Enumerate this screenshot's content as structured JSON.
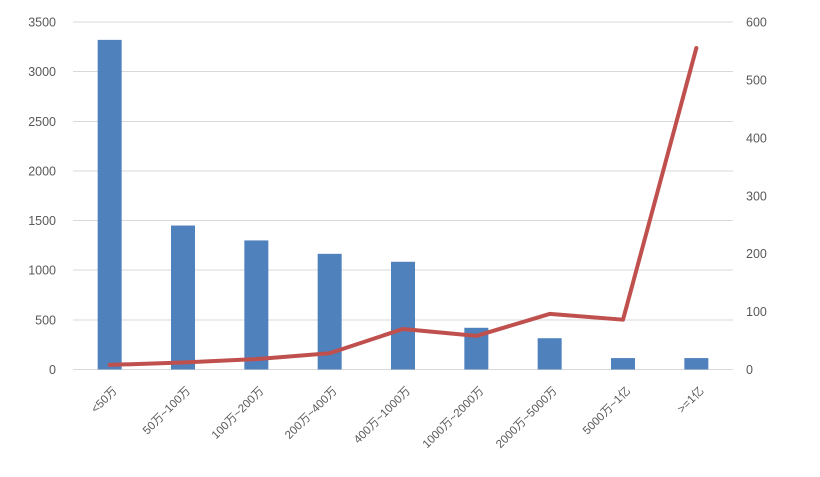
{
  "chart_data": {
    "type": "combo",
    "title": "",
    "xlabel": "",
    "ylabel": "",
    "legend": "none",
    "grid": "horizontal-only",
    "categories": [
      "<50万",
      "50万~100万",
      "100万~200万",
      "200万~400万",
      "400万~1000万",
      "1000万~2000万",
      "2000万~5000万",
      "5000万~1亿",
      ">=1亿"
    ],
    "series": [
      {
        "name": "bar-series",
        "type": "bar",
        "axis": "left",
        "color": "#4F81BD",
        "values": [
          3320,
          1450,
          1300,
          1165,
          1085,
          420,
          315,
          115,
          115
        ]
      },
      {
        "name": "line-series",
        "type": "line",
        "axis": "right",
        "color": "#C0504D",
        "values": [
          8,
          12,
          18,
          28,
          70,
          58,
          96,
          86,
          555
        ]
      }
    ],
    "axes": {
      "left": {
        "min": 0,
        "max": 3500,
        "step": 500,
        "ticks": [
          "0",
          "500",
          "1000",
          "1500",
          "2000",
          "2500",
          "3000",
          "3500"
        ]
      },
      "right": {
        "min": 0,
        "max": 600,
        "step": 100,
        "ticks": [
          "0",
          "100",
          "200",
          "300",
          "400",
          "500",
          "600"
        ]
      }
    },
    "colors": {
      "background": "#FFFFFF",
      "gridline": "#D9D9D9",
      "tick_label": "#595959",
      "bar": "#4F81BD",
      "line": "#C0504D"
    }
  }
}
